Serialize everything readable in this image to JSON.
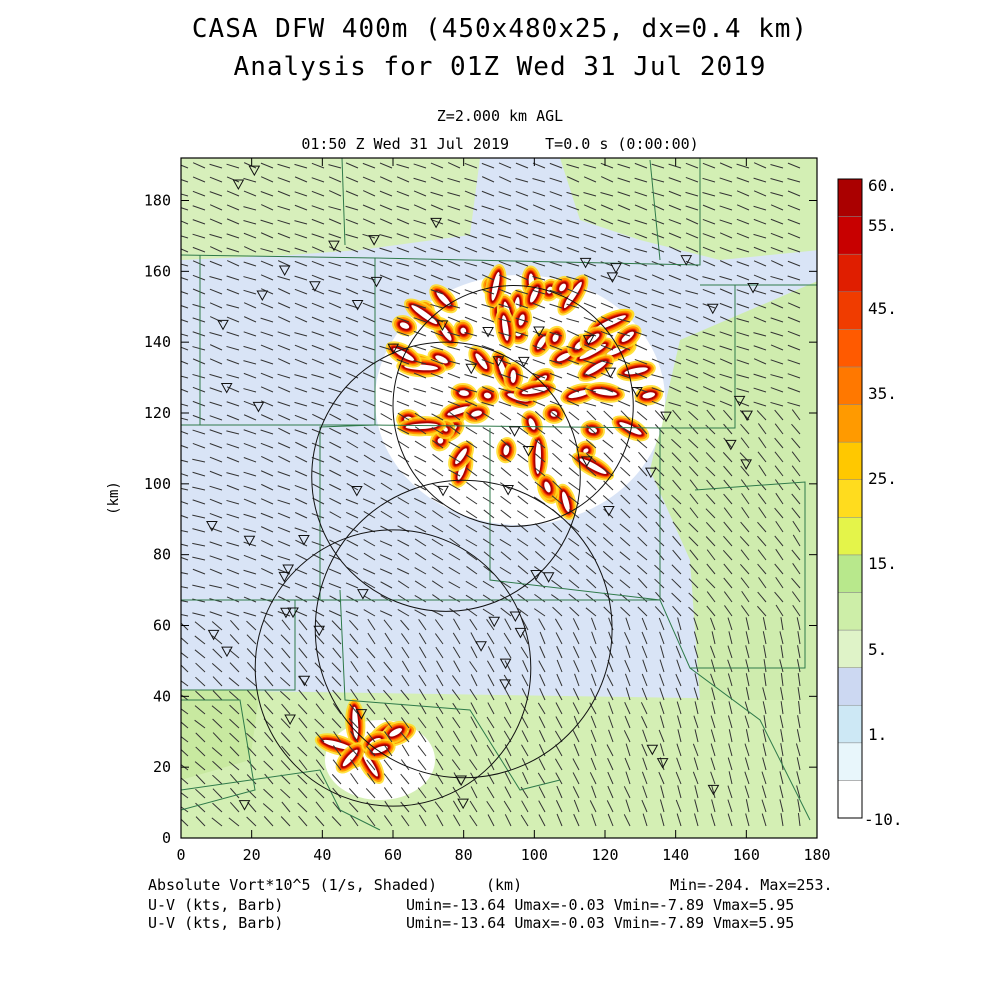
{
  "header": {
    "title_line1": "CASA DFW 400m (450x480x25, dx=0.4 km)",
    "title_line2": "Analysis for 01Z Wed 31 Jul 2019",
    "level": "Z=2.000 km AGL",
    "time": "01:50 Z Wed 31 Jul 2019    T=0.0 s (0:00:00)"
  },
  "footer": {
    "field_name": "Absolute Vort*10^5 (1/s, Shaded)",
    "x_unit_label": "(km)",
    "minmax": "Min=-204. Max=253.",
    "vector1_label": "U-V (kts, Barb)",
    "vector1_stats": "Umin=-13.64 Umax=-0.03 Vmin=-7.89 Vmax=5.95",
    "vector2_label": "U-V (kts, Barb)",
    "vector2_stats": "Umin=-13.64 Umax=-0.03 Vmin=-7.89 Vmax=5.95"
  },
  "chart_data": {
    "type": "heatmap",
    "xlabel": "(km)",
    "ylabel": "(km)",
    "xlim": [
      0,
      180
    ],
    "ylim": [
      0,
      192
    ],
    "x_ticks": [
      0,
      20,
      40,
      60,
      80,
      100,
      120,
      140,
      160,
      180
    ],
    "y_ticks": [
      0,
      20,
      40,
      60,
      80,
      100,
      120,
      140,
      160,
      180
    ],
    "colorbar": {
      "labels": [
        "60.",
        "55.",
        "45.",
        "35.",
        "25.",
        "15.",
        "5.",
        "1.",
        "-10."
      ],
      "colors": [
        "#ffffff",
        "#e8f6fb",
        "#cde8f5",
        "#ccd8f2",
        "#dff3c8",
        "#cdeea8",
        "#b8e88c",
        "#e4f44a",
        "#ffdc1e",
        "#ffc800",
        "#ff9a00",
        "#ff7800",
        "#ff5a00",
        "#f03c00",
        "#e01e00",
        "#c80000",
        "#aa0000"
      ]
    },
    "radar_rings": [
      {
        "cx": 94,
        "cy": 122,
        "r": 34
      },
      {
        "cx": 75,
        "cy": 102,
        "r": 38
      },
      {
        "cx": 60,
        "cy": 48,
        "r": 39
      },
      {
        "cx": 80,
        "cy": 59,
        "r": 42
      }
    ],
    "vorticity_core_regions": [
      {
        "cx": 94,
        "cy": 125,
        "rx": 40,
        "ry": 33
      },
      {
        "cx": 52,
        "cy": 25,
        "rx": 12,
        "ry": 9
      }
    ],
    "stats": {
      "min": -204,
      "max": 253,
      "umin": -13.64,
      "umax": -0.03,
      "vmin": -7.89,
      "vmax": 5.95
    }
  },
  "colors": {
    "axis": "#000000",
    "county_lines": "#2f7a4a",
    "wind_barbs": "#333333"
  }
}
